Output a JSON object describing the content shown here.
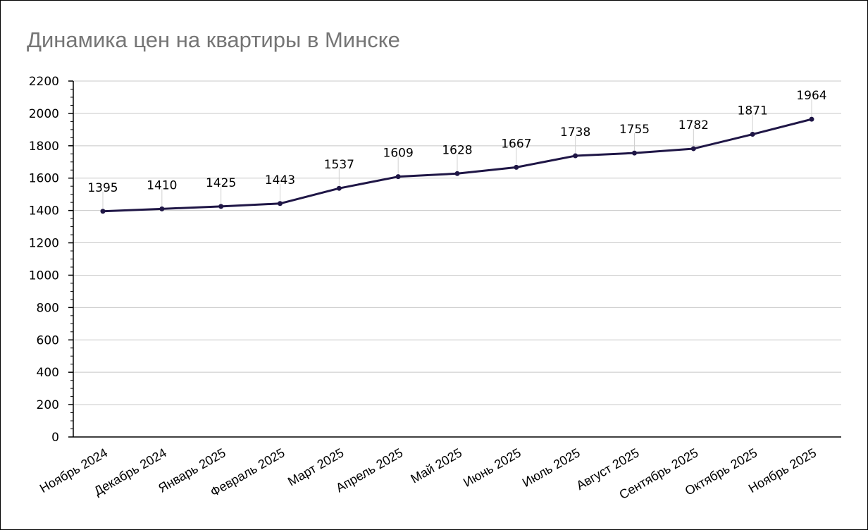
{
  "chart_data": {
    "type": "line",
    "title": "Динамика цен на квартиры в Минске",
    "xlabel": "",
    "ylabel": "",
    "ylim": [
      0,
      2200
    ],
    "yticks": [
      0,
      200,
      400,
      600,
      800,
      1000,
      1200,
      1400,
      1600,
      1800,
      2000,
      2200
    ],
    "grid": true,
    "legend": "none",
    "line_color": "#1f1646",
    "categories": [
      "Ноябрь 2024",
      "Декабрь 2024",
      "Январь 2025",
      "Февраль 2025",
      "Март 2025",
      "Апрель 2025",
      "Май 2025",
      "Июнь 2025",
      "Июль 2025",
      "Август 2025",
      "Сентябрь 2025",
      "Октябрь 2025",
      "Ноябрь 2025"
    ],
    "series": [
      {
        "values": [
          1395,
          1410,
          1425,
          1443,
          1537,
          1609,
          1628,
          1667,
          1738,
          1755,
          1782,
          1871,
          1964
        ]
      }
    ]
  }
}
